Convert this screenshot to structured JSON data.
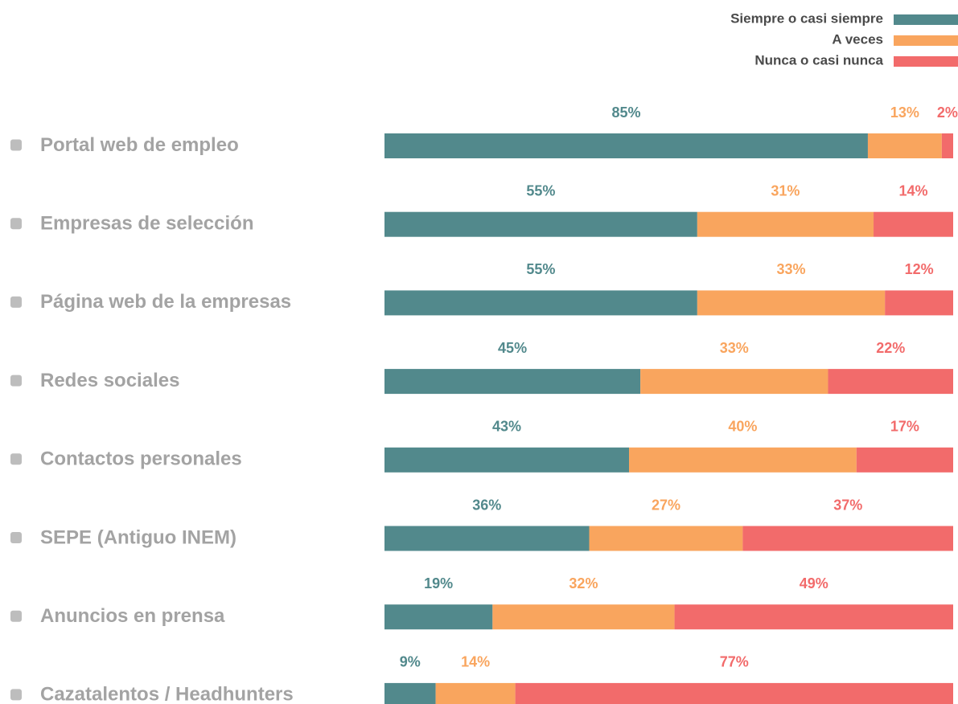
{
  "chart_data": {
    "type": "stacked-barh",
    "categories": [
      "Portal web de empleo",
      "Empresas de selección",
      "Página web de la empresas",
      "Redes sociales",
      "Contactos personales",
      "SEPE (Antiguo INEM)",
      "Anuncios en prensa",
      "Cazatalentos / Headhunters"
    ],
    "series": [
      {
        "name": "Siempre o casi siempre",
        "color": "#52898c",
        "values": [
          85,
          55,
          55,
          45,
          43,
          36,
          19,
          9
        ],
        "value_labels": [
          "85%",
          "55%",
          "55%",
          "45%",
          "43%",
          "36%",
          "19%",
          "9%"
        ]
      },
      {
        "name": "A veces",
        "color": "#f9a55e",
        "values": [
          13,
          31,
          33,
          33,
          40,
          27,
          32,
          14
        ],
        "value_labels": [
          "13%",
          "31%",
          "33%",
          "33%",
          "40%",
          "27%",
          "32%",
          "14%"
        ]
      },
      {
        "name": "Nunca o casi nunca",
        "color": "#f26b6b",
        "values": [
          2,
          14,
          12,
          22,
          17,
          37,
          49,
          77
        ],
        "value_labels": [
          "2%",
          "14%",
          "12%",
          "22%",
          "17%",
          "37%",
          "49%",
          "77%"
        ]
      }
    ],
    "xlim": [
      0,
      100
    ],
    "legend": "top-right"
  }
}
